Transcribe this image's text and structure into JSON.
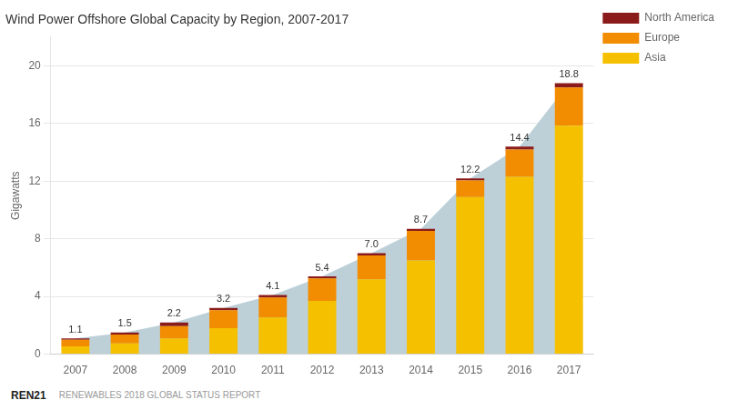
{
  "chart_data": {
    "type": "bar",
    "title": "Wind Power Offshore Global Capacity by Region, 2007-2017",
    "ylabel": "Gigawatts",
    "categories": [
      "2007",
      "2008",
      "2009",
      "2010",
      "2011",
      "2012",
      "2013",
      "2014",
      "2015",
      "2016",
      "2017"
    ],
    "series": [
      {
        "type": "area",
        "color": "#BDD0D8",
        "data_labels": true,
        "values": [
          1.1,
          1.5,
          2.2,
          3.2,
          4.1,
          5.4,
          7.0,
          8.7,
          12.2,
          14.4,
          18.8
        ],
        "value_labels": [
          "1.1",
          "1.5",
          "2.2",
          "3.2",
          "4.1",
          "5.4",
          "7.0",
          "8.7",
          "12.2",
          "14.4",
          "18.8"
        ]
      },
      {
        "name": "Asia",
        "color": "#F5C000",
        "values": [
          0.55,
          0.75,
          1.1,
          1.8,
          2.55,
          3.7,
          5.2,
          6.5,
          10.9,
          12.3,
          15.85
        ]
      },
      {
        "name": "Europe",
        "color": "#F28C00",
        "values": [
          0.45,
          0.62,
          0.85,
          1.25,
          1.38,
          1.55,
          1.65,
          2.05,
          1.15,
          1.9,
          2.65
        ]
      },
      {
        "name": "North America",
        "color": "#8B1A1A",
        "values": [
          0.1,
          0.13,
          0.25,
          0.15,
          0.17,
          0.15,
          0.15,
          0.15,
          0.15,
          0.2,
          0.3
        ]
      }
    ],
    "stacked": true,
    "ylim": [
      0,
      22
    ],
    "yticks": [
      0,
      4,
      8,
      12,
      16,
      20
    ],
    "grid": "y",
    "legend": "upper right",
    "annotations": [
      "REN21",
      "RENEWABLES 2018 GLOBAL STATUS REPORT"
    ]
  }
}
